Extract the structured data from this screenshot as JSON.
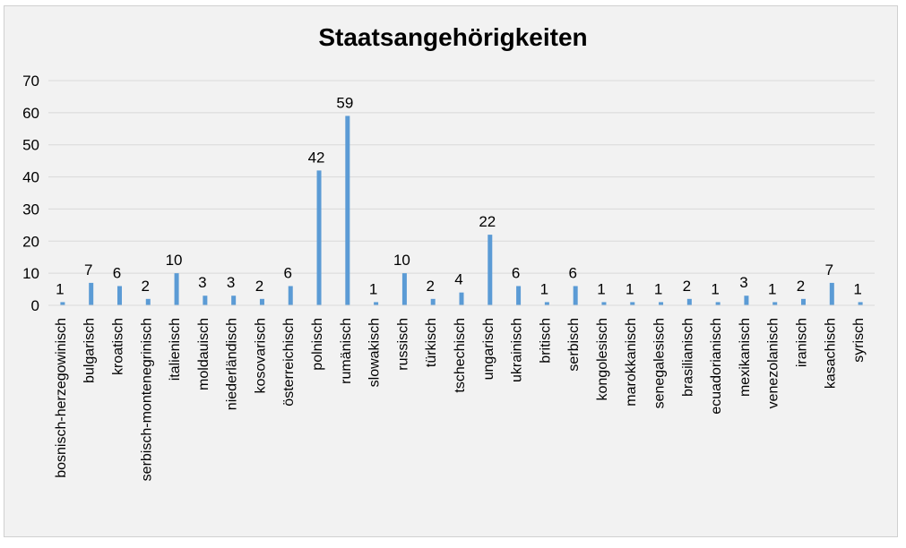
{
  "chart_data": {
    "type": "bar",
    "title": "Staatsangehörigkeiten",
    "xlabel": "",
    "ylabel": "",
    "ylim": [
      0,
      70
    ],
    "yticks": [
      0,
      10,
      20,
      30,
      40,
      50,
      60,
      70
    ],
    "grid": true,
    "legend": "none",
    "bar_color": "#5b9bd5",
    "categories": [
      "bosnisch-herzegowinisch",
      "bulgarisch",
      "kroatisch",
      "serbisch-montenegrinisch",
      "italienisch",
      "moldauisch",
      "niederländisch",
      "kosovarisch",
      "österreichisch",
      "polnisch",
      "rumänisch",
      "slowakisch",
      "russisch",
      "türkisch",
      "tschechisch",
      "ungarisch",
      "ukrainisch",
      "britisch",
      "serbisch",
      "kongolesisch",
      "marokkanisch",
      "senegalesisch",
      "brasilianisch",
      "ecuadorianisch",
      "mexikanisch",
      "venezolanisch",
      "iranisch",
      "kasachisch",
      "syrisch"
    ],
    "values": [
      1,
      7,
      6,
      2,
      10,
      3,
      3,
      2,
      6,
      42,
      59,
      1,
      10,
      2,
      4,
      22,
      6,
      1,
      6,
      1,
      1,
      1,
      2,
      1,
      3,
      1,
      2,
      7,
      1
    ]
  }
}
